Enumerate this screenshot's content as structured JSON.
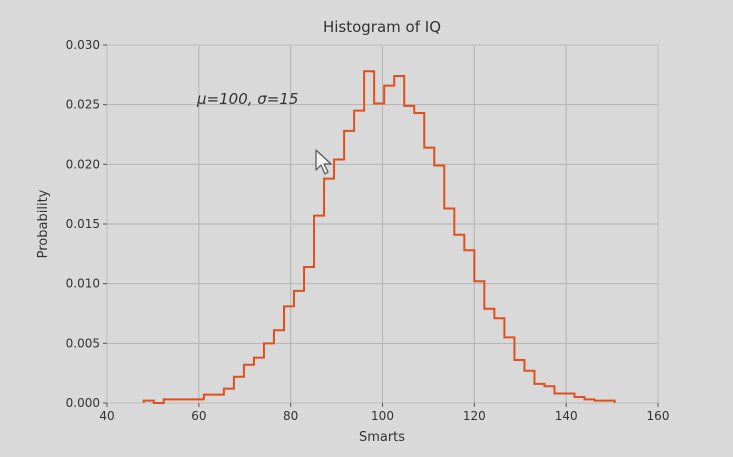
{
  "chart_data": {
    "type": "histogram",
    "title": "Histogram of IQ",
    "xlabel": "Smarts",
    "ylabel": "Probability",
    "annotation": "μ=100,  σ=15",
    "xlim": [
      40,
      160
    ],
    "ylim": [
      0,
      0.03
    ],
    "xticks": [
      "40",
      "60",
      "80",
      "100",
      "120",
      "140",
      "160"
    ],
    "yticks": [
      "0.000",
      "0.005",
      "0.010",
      "0.015",
      "0.020",
      "0.025",
      "0.030"
    ],
    "grid": true,
    "histtype": "step",
    "color": "#e0501f",
    "bin_edges": [
      48,
      50.18,
      52.36,
      54.55,
      56.73,
      58.91,
      61.09,
      63.27,
      65.45,
      67.64,
      69.82,
      72,
      74.18,
      76.36,
      78.55,
      80.73,
      82.91,
      85.09,
      87.27,
      89.45,
      91.64,
      93.82,
      96,
      98.18,
      100.36,
      102.55,
      104.73,
      106.91,
      109.09,
      111.27,
      113.45,
      115.64,
      117.82,
      120,
      122.18,
      124.36,
      126.55,
      128.73,
      130.91,
      133.09,
      135.27,
      137.45,
      139.64,
      141.82,
      144,
      146.18,
      148.36,
      150.55
    ],
    "values": [
      0.0002,
      0,
      0.0003,
      0.0003,
      0.0003,
      0.0003,
      0.0007,
      0.0007,
      0.0012,
      0.0022,
      0.0032,
      0.0038,
      0.005,
      0.0061,
      0.0081,
      0.0094,
      0.0114,
      0.0157,
      0.0188,
      0.0204,
      0.0228,
      0.0245,
      0.0278,
      0.0251,
      0.0266,
      0.0274,
      0.0249,
      0.0243,
      0.0214,
      0.0199,
      0.0163,
      0.0141,
      0.0128,
      0.0102,
      0.0079,
      0.0071,
      0.0055,
      0.0036,
      0.0027,
      0.0016,
      0.0014,
      0.0008,
      0.0008,
      0.0005,
      0.0003,
      0.0002,
      0.0002
    ]
  },
  "cursor": {
    "icon": "mouse-pointer-icon"
  }
}
